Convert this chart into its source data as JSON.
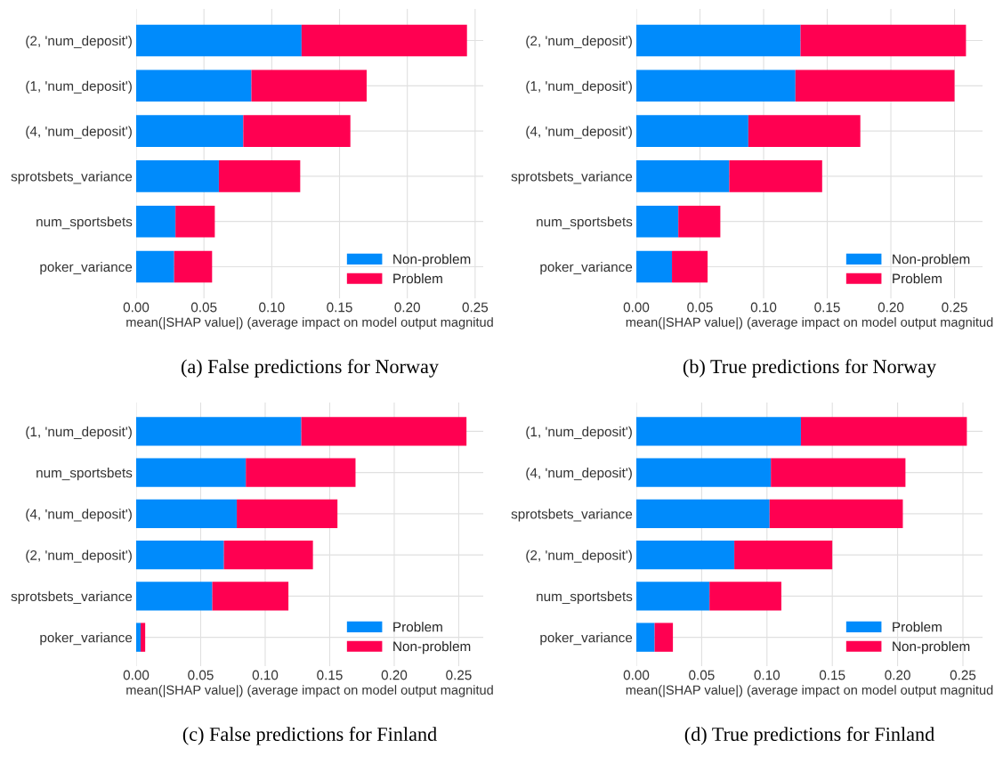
{
  "chart_data": [
    {
      "type": "bar",
      "orientation": "horizontal",
      "stacked": true,
      "xlabel": "mean(|SHAP value|) (average impact on model output magnitud",
      "annotations": [
        "(a) False predictions for Norway"
      ],
      "categories": [
        "(2, 'num_deposit')",
        "(1, 'num_deposit')",
        "(4, 'num_deposit')",
        "sprotsbets_variance",
        "num_sportsbets",
        "poker_variance"
      ],
      "series": [
        {
          "name": "Non-problem",
          "color": "#008bfb",
          "values": [
            0.122,
            0.085,
            0.079,
            0.061,
            0.029,
            0.028
          ]
        },
        {
          "name": "Problem",
          "color": "#ff0051",
          "values": [
            0.122,
            0.085,
            0.079,
            0.06,
            0.029,
            0.028
          ]
        }
      ],
      "xlim": [
        0,
        0.256
      ],
      "xticks": [
        {
          "value": 0,
          "label": "0.00"
        },
        0.05,
        {
          "value": 0.1,
          "label": "0.10"
        },
        0.15,
        {
          "value": 0.2,
          "label": "0.20"
        },
        0.25
      ],
      "grid": true,
      "legend": "bottom right"
    },
    {
      "type": "bar",
      "orientation": "horizontal",
      "stacked": true,
      "xlabel": "mean(|SHAP value|) (average impact on model output magnitud",
      "annotations": [
        "(b) True predictions for Norway"
      ],
      "categories": [
        "(2, 'num_deposit')",
        "(1, 'num_deposit')",
        "(4, 'num_deposit')",
        "sprotsbets_variance",
        "num_sportsbets",
        "poker_variance"
      ],
      "series": [
        {
          "name": "Non-problem",
          "color": "#008bfb",
          "values": [
            0.129,
            0.125,
            0.088,
            0.073,
            0.033,
            0.028
          ]
        },
        {
          "name": "Problem",
          "color": "#ff0051",
          "values": [
            0.13,
            0.125,
            0.088,
            0.073,
            0.033,
            0.028
          ]
        }
      ],
      "xlim": [
        0,
        0.272
      ],
      "xticks": [
        {
          "value": 0,
          "label": "0.00"
        },
        0.05,
        {
          "value": 0.1,
          "label": "0.10"
        },
        0.15,
        {
          "value": 0.2,
          "label": "0.20"
        },
        0.25
      ],
      "grid": true,
      "legend": "bottom right"
    },
    {
      "type": "bar",
      "orientation": "horizontal",
      "stacked": true,
      "xlabel": "mean(|SHAP value|) (average impact on model output magnitud",
      "annotations": [
        "(c) False predictions for Finland"
      ],
      "categories": [
        "(1, 'num_deposit')",
        "num_sportsbets",
        "(4, 'num_deposit')",
        "(2, 'num_deposit')",
        "sprotsbets_variance",
        "poker_variance"
      ],
      "series": [
        {
          "name": "Problem",
          "color": "#008bfb",
          "values": [
            0.128,
            0.085,
            0.078,
            0.068,
            0.059,
            0.0035
          ]
        },
        {
          "name": "Non-problem",
          "color": "#ff0051",
          "values": [
            0.128,
            0.085,
            0.078,
            0.069,
            0.059,
            0.0035
          ]
        }
      ],
      "xlim": [
        0,
        0.269
      ],
      "xticks": [
        {
          "value": 0,
          "label": "0.00"
        },
        0.05,
        {
          "value": 0.1,
          "label": "0.10"
        },
        0.15,
        {
          "value": 0.2,
          "label": "0.20"
        },
        0.25
      ],
      "grid": true,
      "legend": "bottom right"
    },
    {
      "type": "bar",
      "orientation": "horizontal",
      "stacked": true,
      "xlabel": "mean(|SHAP value|) (average impact on model output magnitud",
      "annotations": [
        "(d) True predictions for Finland"
      ],
      "categories": [
        "(1, 'num_deposit')",
        "(4, 'num_deposit')",
        "sprotsbets_variance",
        "(2, 'num_deposit')",
        "num_sportsbets",
        "poker_variance"
      ],
      "series": [
        {
          "name": "Problem",
          "color": "#008bfb",
          "values": [
            0.126,
            0.103,
            0.102,
            0.075,
            0.056,
            0.014
          ]
        },
        {
          "name": "Non-problem",
          "color": "#ff0051",
          "values": [
            0.127,
            0.103,
            0.102,
            0.075,
            0.055,
            0.014
          ]
        }
      ],
      "xlim": [
        0,
        0.265
      ],
      "xticks": [
        {
          "value": 0,
          "label": "0.00"
        },
        0.05,
        {
          "value": 0.1,
          "label": "0.10"
        },
        0.15,
        {
          "value": 0.2,
          "label": "0.20"
        },
        0.25
      ],
      "grid": true,
      "legend": "bottom right"
    }
  ]
}
